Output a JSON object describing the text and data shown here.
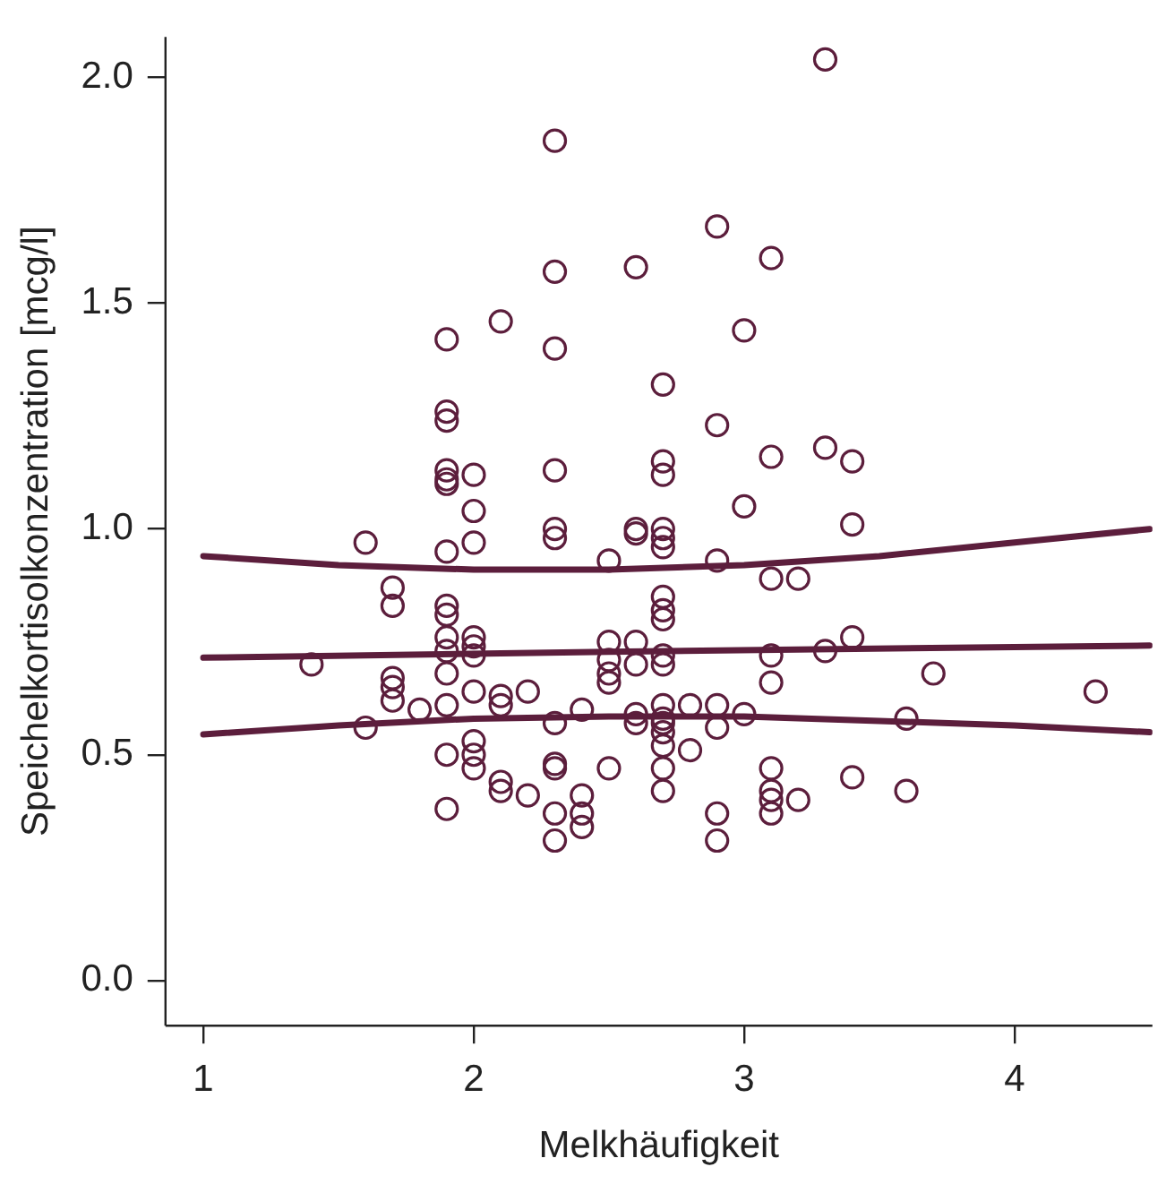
{
  "chart_data": {
    "type": "scatter",
    "xlabel": "Melkhäufigkeit",
    "ylabel": "Speichelkortisolkonzentration [mcg/l]",
    "xlim": [
      0.86,
      4.51
    ],
    "ylim": [
      -0.1,
      2.09
    ],
    "xticks": [
      1,
      2,
      3,
      4
    ],
    "yticks": [
      {
        "value": 0,
        "label": "0.0"
      },
      0.5,
      {
        "value": 1,
        "label": "1.0"
      },
      1.5,
      {
        "value": 2,
        "label": "2.0"
      }
    ],
    "grid": false,
    "legend": false,
    "series": [
      {
        "marker": "circle",
        "color": "#5c1e3c",
        "x": [
          1.4,
          1.6,
          1.6,
          1.7,
          1.7,
          1.7,
          1.7,
          1.7,
          1.8,
          1.9,
          1.9,
          1.9,
          1.9,
          1.9,
          1.9,
          1.9,
          1.9,
          1.9,
          1.9,
          1.9,
          1.9,
          1.9,
          1.9,
          1.9,
          2,
          2,
          2,
          2,
          2,
          2,
          2,
          2,
          2,
          2,
          2.1,
          2.1,
          2.1,
          2.1,
          2.1,
          2.2,
          2.2,
          2.3,
          2.3,
          2.3,
          2.3,
          2.3,
          2.3,
          2.3,
          2.3,
          2.3,
          2.3,
          2.3,
          2.4,
          2.4,
          2.4,
          2.4,
          2.5,
          2.5,
          2.5,
          2.5,
          2.5,
          2.5,
          2.6,
          2.6,
          2.6,
          2.6,
          2.6,
          2.6,
          2.6,
          2.7,
          2.7,
          2.7,
          2.7,
          2.7,
          2.7,
          2.7,
          2.7,
          2.7,
          2.7,
          2.7,
          2.7,
          2.7,
          2.7,
          2.7,
          2.7,
          2.7,
          2.7,
          2.8,
          2.8,
          2.9,
          2.9,
          2.9,
          2.9,
          2.9,
          2.9,
          2.9,
          3,
          3,
          3,
          3.1,
          3.1,
          3.1,
          3.1,
          3.1,
          3.1,
          3.1,
          3.1,
          3.1,
          3.2,
          3.2,
          3.3,
          3.3,
          3.3,
          3.4,
          3.4,
          3.4,
          3.4,
          3.6,
          3.6,
          3.7,
          4.3
        ],
        "values": [
          0.7,
          0.97,
          0.56,
          0.87,
          0.83,
          0.67,
          0.65,
          0.62,
          0.6,
          1.42,
          1.26,
          1.24,
          1.13,
          1.11,
          1.1,
          0.95,
          0.83,
          0.81,
          0.76,
          0.73,
          0.68,
          0.61,
          0.5,
          0.38,
          1.12,
          1.04,
          0.97,
          0.76,
          0.74,
          0.72,
          0.64,
          0.53,
          0.5,
          0.47,
          1.46,
          0.63,
          0.61,
          0.44,
          0.42,
          0.64,
          0.41,
          1.86,
          1.57,
          1.4,
          1.13,
          1,
          0.98,
          0.57,
          0.48,
          0.47,
          0.37,
          0.31,
          0.6,
          0.41,
          0.37,
          0.34,
          0.93,
          0.75,
          0.71,
          0.68,
          0.66,
          0.47,
          1.58,
          1,
          0.99,
          0.75,
          0.7,
          0.59,
          0.57,
          1.32,
          1.15,
          1.12,
          1,
          0.98,
          0.96,
          0.85,
          0.82,
          0.8,
          0.72,
          0.7,
          0.61,
          0.58,
          0.57,
          0.55,
          0.52,
          0.47,
          0.42,
          0.61,
          0.51,
          1.67,
          1.23,
          0.93,
          0.61,
          0.56,
          0.37,
          0.31,
          1.44,
          1.05,
          0.59,
          1.6,
          1.16,
          0.89,
          0.72,
          0.66,
          0.47,
          0.42,
          0.4,
          0.37,
          0.89,
          0.4,
          2.04,
          1.18,
          0.73,
          1.15,
          1.01,
          0.76,
          0.45,
          0.58,
          0.42,
          0.68,
          0.64
        ]
      },
      {
        "type": "line",
        "color": "#5c1e3c",
        "x": [
          1,
          2.5,
          4.5
        ],
        "values": [
          0.715,
          0.728,
          0.742
        ]
      },
      {
        "type": "line",
        "color": "#5c1e3c",
        "x": [
          1,
          1.5,
          2,
          2.5,
          3,
          3.5,
          4,
          4.5
        ],
        "values": [
          0.94,
          0.92,
          0.91,
          0.91,
          0.92,
          0.94,
          0.97,
          1.0
        ]
      },
      {
        "type": "line",
        "color": "#5c1e3c",
        "x": [
          1,
          1.5,
          2,
          2.5,
          3,
          3.5,
          4,
          4.5
        ],
        "values": [
          0.545,
          0.565,
          0.58,
          0.585,
          0.585,
          0.575,
          0.565,
          0.55
        ]
      }
    ]
  }
}
